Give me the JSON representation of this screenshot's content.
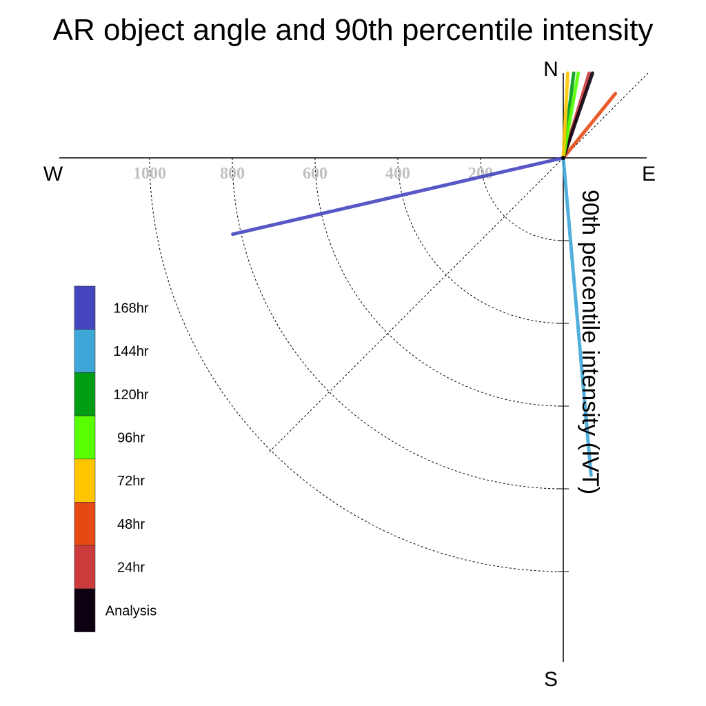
{
  "chart_data": {
    "type": "polar-vectors",
    "title": "AR object angle and 90th percentile intensity",
    "ylabel": "90th percentile intensity (IVT)",
    "compass": {
      "north": "N",
      "south": "S",
      "east": "E",
      "west": "W"
    },
    "radial_ticks": [
      {
        "value": 200,
        "label": "200"
      },
      {
        "value": 400,
        "label": "400"
      },
      {
        "value": 600,
        "label": "600"
      },
      {
        "value": 800,
        "label": "800"
      },
      {
        "value": 1000,
        "label": "1000"
      }
    ],
    "series": [
      {
        "name": "Analysis",
        "color": "#0d0010",
        "angle_deg": 19,
        "intensity": 270
      },
      {
        "name": "24hr",
        "color": "#cc3b3b",
        "angle_deg": 17,
        "intensity": 270
      },
      {
        "name": "48hr",
        "color": "#e64a14",
        "angle_deg": 39,
        "intensity": 200
      },
      {
        "name": "72hr",
        "color": "#ffc600",
        "angle_deg": 3,
        "intensity": 250
      },
      {
        "name": "96hr",
        "color": "#58ff00",
        "angle_deg": 10,
        "intensity": 250
      },
      {
        "name": "120hr",
        "color": "#009d14",
        "angle_deg": 7,
        "intensity": 245
      },
      {
        "name": "144hr",
        "color": "#3fa6d8",
        "angle_deg": 175,
        "intensity": 770
      },
      {
        "name": "168hr",
        "color": "#4545c0",
        "angle_deg": 257,
        "intensity": 820
      }
    ],
    "legend": [
      "168hr",
      "144hr",
      "120hr",
      "96hr",
      "72hr",
      "48hr",
      "24hr",
      "Analysis"
    ]
  }
}
